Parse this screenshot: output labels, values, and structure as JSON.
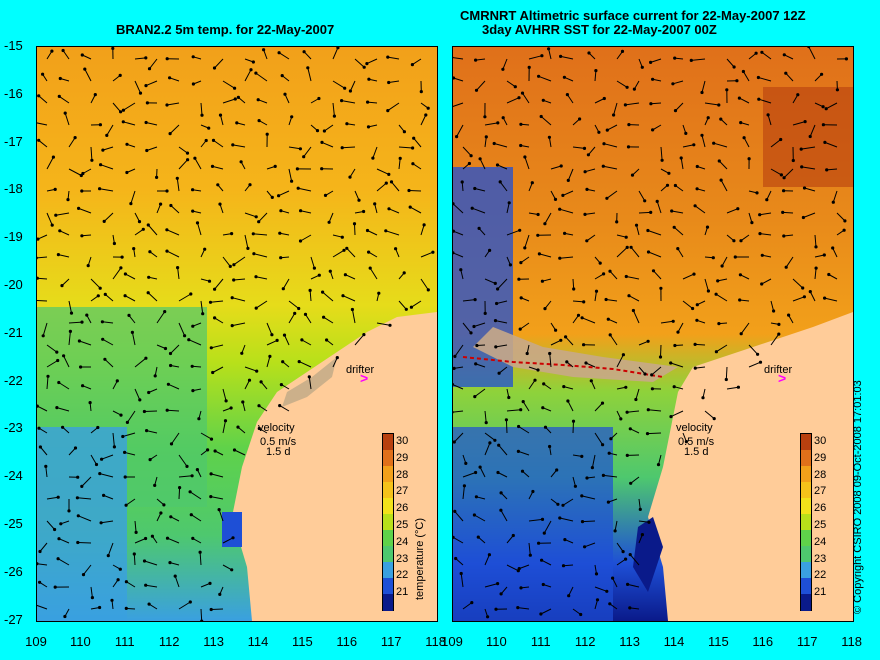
{
  "titles": {
    "left": "BRAN2.2 5m temp. for 22-May-2007",
    "right_line1": "CMRNRT Altimetric surface current for 22-May-2007 12Z",
    "right_line2": "3day AVHRR SST for 22-May-2007 00Z"
  },
  "y_ticks": [
    "-15",
    "-16",
    "-17",
    "-18",
    "-19",
    "-20",
    "-21",
    "-22",
    "-23",
    "-24",
    "-25",
    "-26",
    "-27"
  ],
  "x_ticks": [
    "109",
    "110",
    "111",
    "112",
    "113",
    "114",
    "115",
    "116",
    "117",
    "118"
  ],
  "labels": {
    "drifter": "drifter",
    "velocity": "velocity",
    "speed": "0.5 m/s",
    "duration": "1.5 d",
    "cbar_title": "temperature (°C)",
    "copyright": "© Copyright CSIRO 2008   09-Oct-2008 17:01:03"
  },
  "cbar_ticks": [
    "30",
    "29",
    "28",
    "27",
    "26",
    "25",
    "24",
    "23",
    "22",
    "21"
  ],
  "colors": {
    "background": "#00ffff",
    "land": "#ffcc99",
    "drifter": "#ff00ff",
    "cbar": [
      "#0a1a8a",
      "#1e4fd6",
      "#3aa0e0",
      "#4ec86e",
      "#5fd24a",
      "#b8e01a",
      "#f2e21a",
      "#f5c21a",
      "#f2a01a",
      "#e0701a",
      "#b8400f"
    ]
  }
}
